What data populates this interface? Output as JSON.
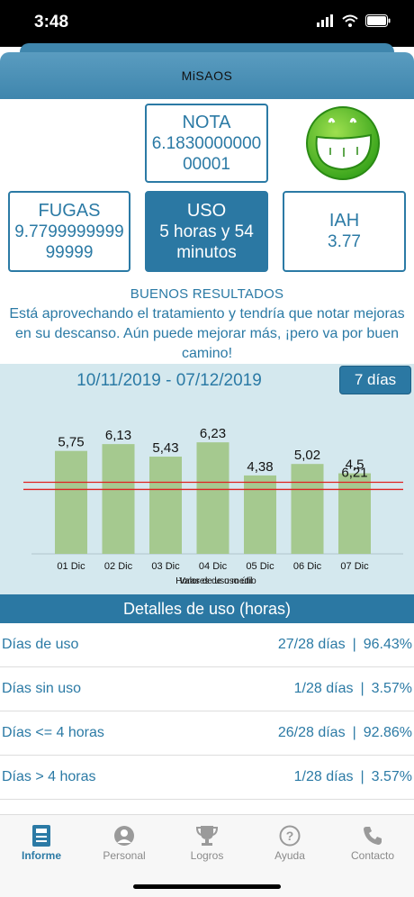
{
  "status_bar": {
    "time": "3:48"
  },
  "header": {
    "title": "MiSAOS"
  },
  "nota": {
    "label": "NOTA",
    "value": "6.183000000000001"
  },
  "fugas": {
    "label": "FUGAS",
    "value": "9.779999999999999"
  },
  "uso": {
    "label": "USO",
    "value": "5 horas y 54 minutos"
  },
  "iah": {
    "label": "IAH",
    "value": "3.77"
  },
  "result": {
    "heading": "BUENOS RESULTADOS",
    "message": "Está aprovechando el tratamiento y tendría que notar mejoras en su descanso. Aún puede mejorar más, ¡pero va por buen camino!"
  },
  "range": {
    "text": "10/11/2019 - 07/12/2019",
    "period_button": "7 días"
  },
  "chart_data": {
    "type": "bar",
    "categories": [
      "01 Dic",
      "02 Dic",
      "03 Dic",
      "04 Dic",
      "05 Dic",
      "06 Dic",
      "07 Dic"
    ],
    "values": [
      5.75,
      6.13,
      5.43,
      6.23,
      4.38,
      5.02,
      4.5
    ],
    "value_labels": [
      "5,75",
      "6,13",
      "5,43",
      "6,23",
      "4,38",
      "5,02",
      "4,5"
    ],
    "overlap_label": "6,21",
    "reference_lines": [
      4.0,
      3.6
    ],
    "reference_color": "#e02020",
    "bar_color": "#a5c98f",
    "xlabel_overlap": [
      "Valores de uso útil",
      "Horas de uso medio"
    ],
    "ylim": [
      0,
      8.5
    ]
  },
  "details": {
    "heading": "Detalles de uso (horas)",
    "rows": [
      {
        "label": "Días de uso",
        "count": "27/28 días",
        "sep": "|",
        "pct": "96.43%"
      },
      {
        "label": "Días sin uso",
        "count": "1/28 días",
        "sep": "|",
        "pct": "3.57%"
      },
      {
        "label": "Días <= 4 horas",
        "count": "26/28 días",
        "sep": "|",
        "pct": "92.86%"
      },
      {
        "label": "Días > 4 horas",
        "count": "1/28 días",
        "sep": "|",
        "pct": "3.57%"
      }
    ]
  },
  "tabs": [
    {
      "label": "Informe",
      "icon": "report-icon",
      "active": true
    },
    {
      "label": "Personal",
      "icon": "user-icon",
      "active": false
    },
    {
      "label": "Logros",
      "icon": "trophy-icon",
      "active": false
    },
    {
      "label": "Ayuda",
      "icon": "help-icon",
      "active": false
    },
    {
      "label": "Contacto",
      "icon": "phone-icon",
      "active": false
    }
  ],
  "colors": {
    "accent": "#2b7aa5",
    "chart_bg": "#d4e8ee"
  }
}
